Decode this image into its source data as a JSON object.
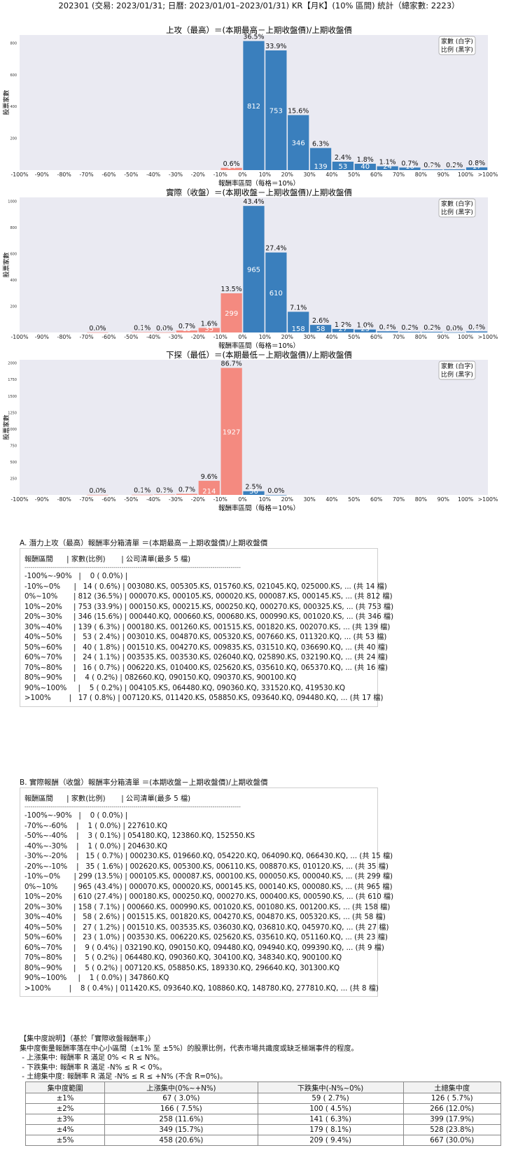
{
  "page_title": "202301 (交易: 2023/01/31; 日曆: 2023/01/01–2023/01/31) KR【月K】(10% 區間) 統計（總家數: 2223）",
  "chart_data": [
    {
      "type": "bar",
      "title": "上攻（最高）＝(本期最高－上期收盤價)/上期收盤價",
      "xlabel": "報酬率區間（每格＝10%）",
      "ylabel": "股票家數",
      "legend": [
        "家數 (白字)",
        "比例 (黑字)"
      ],
      "legend_position": "top-right",
      "x_ticks": [
        "-100%",
        "-90%",
        "-80%",
        "-70%",
        "-60%",
        "-50%",
        "-40%",
        "-30%",
        "-20%",
        "-10%",
        "0%",
        "10%",
        "20%",
        "30%",
        "40%",
        "50%",
        "60%",
        "70%",
        "80%",
        "90%",
        "100%",
        ">100%"
      ],
      "y_ticks": [
        200,
        400,
        600,
        800
      ],
      "ylim": [
        0,
        850
      ],
      "bins": [
        {
          "lo": -10,
          "count": 14,
          "pct": "0.6%",
          "side": "neg"
        },
        {
          "lo": 0,
          "count": 812,
          "pct": "36.5%",
          "side": "pos"
        },
        {
          "lo": 10,
          "count": 753,
          "pct": "33.9%",
          "side": "pos"
        },
        {
          "lo": 20,
          "count": 346,
          "pct": "15.6%",
          "side": "pos"
        },
        {
          "lo": 30,
          "count": 139,
          "pct": "6.3%",
          "side": "pos"
        },
        {
          "lo": 40,
          "count": 53,
          "pct": "2.4%",
          "side": "pos"
        },
        {
          "lo": 50,
          "count": 40,
          "pct": "1.8%",
          "side": "pos"
        },
        {
          "lo": 60,
          "count": 24,
          "pct": "1.1%",
          "side": "pos"
        },
        {
          "lo": 70,
          "count": 16,
          "pct": "0.7%",
          "side": "pos"
        },
        {
          "lo": 80,
          "count": 4,
          "pct": "0.2%",
          "side": "pos"
        },
        {
          "lo": 90,
          "count": 5,
          "pct": "0.2%",
          "side": "pos"
        },
        {
          "lo": 100,
          "count": 17,
          "pct": "0.8%",
          "side": "pos"
        }
      ]
    },
    {
      "type": "bar",
      "title": "實際（收盤）＝(本期收盤－上期收盤價)/上期收盤價",
      "xlabel": "報酬率區間（每格＝10%）",
      "ylabel": "股票家數",
      "legend": [
        "家數 (白字)",
        "比例 (黑字)"
      ],
      "legend_position": "top-right",
      "x_ticks": [
        "-100%",
        "-90%",
        "-80%",
        "-70%",
        "-60%",
        "-50%",
        "-40%",
        "-30%",
        "-20%",
        "-10%",
        "0%",
        "10%",
        "20%",
        "30%",
        "40%",
        "50%",
        "60%",
        "70%",
        "80%",
        "90%",
        "100%",
        ">100%"
      ],
      "y_ticks": [
        200,
        400,
        600,
        800,
        1000
      ],
      "ylim": [
        0,
        1030
      ],
      "bins": [
        {
          "lo": -70,
          "count": 1,
          "pct": "0.0%",
          "side": "neg"
        },
        {
          "lo": -50,
          "count": 3,
          "pct": "0.1%",
          "side": "neg"
        },
        {
          "lo": -40,
          "count": 1,
          "pct": "0.0%",
          "side": "neg"
        },
        {
          "lo": -30,
          "count": 15,
          "pct": "0.7%",
          "side": "neg"
        },
        {
          "lo": -20,
          "count": 35,
          "pct": "1.6%",
          "side": "neg"
        },
        {
          "lo": -10,
          "count": 299,
          "pct": "13.5%",
          "side": "neg"
        },
        {
          "lo": 0,
          "count": 965,
          "pct": "43.4%",
          "side": "pos"
        },
        {
          "lo": 10,
          "count": 610,
          "pct": "27.4%",
          "side": "pos"
        },
        {
          "lo": 20,
          "count": 158,
          "pct": "7.1%",
          "side": "pos"
        },
        {
          "lo": 30,
          "count": 58,
          "pct": "2.6%",
          "side": "pos"
        },
        {
          "lo": 40,
          "count": 27,
          "pct": "1.2%",
          "side": "pos"
        },
        {
          "lo": 50,
          "count": 23,
          "pct": "1.0%",
          "side": "pos"
        },
        {
          "lo": 60,
          "count": 9,
          "pct": "0.4%",
          "side": "pos"
        },
        {
          "lo": 70,
          "count": 5,
          "pct": "0.2%",
          "side": "pos"
        },
        {
          "lo": 80,
          "count": 5,
          "pct": "0.2%",
          "side": "pos"
        },
        {
          "lo": 90,
          "count": 1,
          "pct": "0.0%",
          "side": "pos"
        },
        {
          "lo": 100,
          "count": 8,
          "pct": "0.4%",
          "side": "pos"
        }
      ]
    },
    {
      "type": "bar",
      "title": "下探（最低）＝(本期最低－上期收盤價)/上期收盤價",
      "xlabel": "報酬率區間（每格＝10%）",
      "ylabel": "股票家數",
      "legend": [
        "家數 (白字)",
        "比例 (黑字)"
      ],
      "legend_position": "top-right",
      "x_ticks": [
        "-100%",
        "-90%",
        "-80%",
        "-70%",
        "-60%",
        "-50%",
        "-40%",
        "-30%",
        "-20%",
        "-10%",
        "0%",
        "10%",
        "20%",
        "30%",
        "40%",
        "50%",
        "60%",
        "70%",
        "80%",
        "90%",
        "100%",
        ">100%"
      ],
      "y_ticks": [
        250,
        500,
        750,
        1000,
        1250,
        1500,
        1750,
        2000
      ],
      "ylim": [
        0,
        2050
      ],
      "bins": [
        {
          "lo": -70,
          "count": 1,
          "pct": "0.0%",
          "side": "neg"
        },
        {
          "lo": -50,
          "count": 3,
          "pct": "0.1%",
          "side": "neg"
        },
        {
          "lo": -40,
          "count": 6,
          "pct": "0.3%",
          "side": "neg"
        },
        {
          "lo": -30,
          "count": 16,
          "pct": "0.7%",
          "side": "neg"
        },
        {
          "lo": -20,
          "count": 214,
          "pct": "9.6%",
          "side": "neg"
        },
        {
          "lo": -10,
          "count": 1927,
          "pct": "86.7%",
          "side": "neg"
        },
        {
          "lo": 0,
          "count": 56,
          "pct": "2.5%",
          "side": "pos"
        },
        {
          "lo": 10,
          "count": 0,
          "pct": "0.0%",
          "side": "pos"
        }
      ]
    }
  ],
  "section_a": {
    "title": "A. 潛力上攻（最高）報酬率分箱清單 ＝(本期最高－上期收盤價)/上期收盤價",
    "header": "報酬區間      | 家數(比例)       | 公司清單(最多 5 檔)",
    "dashes": "-----------------------------------------------------------------------------------------------------------",
    "lines": [
      "-100%~-90%   |    0 ( 0.0%) |",
      "-10%~0%      |   14 ( 0.6%) | 003080.KS, 005305.KS, 015760.KS, 021045.KQ, 025000.KS, ... (共 14 檔)",
      "0%~10%       | 812 (36.5%) | 000070.KS, 000105.KS, 000020.KS, 000087.KS, 000145.KS, ... (共 812 檔)",
      "10%~20%     | 753 (33.9%) | 000150.KS, 000215.KS, 000250.KQ, 000270.KS, 000325.KS, ... (共 753 檔)",
      "20%~30%     | 346 (15.6%) | 000440.KQ, 000660.KS, 000680.KS, 000990.KS, 001020.KS, ... (共 346 檔)",
      "30%~40%     | 139 ( 6.3%) | 000180.KS, 001260.KS, 001515.KS, 001820.KS, 002070.KS, ... (共 139 檔)",
      "40%~50%     |   53 ( 2.4%) | 003010.KS, 004870.KS, 005320.KS, 007660.KS, 011320.KQ, ... (共 53 檔)",
      "50%~60%     |   40 ( 1.8%) | 001510.KS, 004270.KS, 009835.KS, 031510.KQ, 036690.KQ, ... (共 40 檔)",
      "60%~70%     |   24 ( 1.1%) | 003535.KS, 003530.KS, 026040.KQ, 025890.KS, 032190.KQ, ... (共 24 檔)",
      "70%~80%     |   16 ( 0.7%) | 006220.KS, 010400.KS, 025620.KS, 035610.KQ, 065370.KQ, ... (共 16 檔)",
      "80%~90%     |    4 ( 0.2%) | 082660.KQ, 090150.KQ, 090370.KS, 900100.KQ",
      "90%~100%     |    5 ( 0.2%) | 004105.KS, 064480.KQ, 090360.KQ, 331520.KQ, 419530.KQ",
      ">100%        |   17 ( 0.8%) | 007120.KS, 011420.KS, 058850.KS, 093640.KQ, 094480.KQ, ... (共 17 檔)"
    ]
  },
  "section_b": {
    "title": "B. 實際報酬（收盤）報酬率分箱清單 ＝(本期收盤－上期收盤價)/上期收盤價",
    "header": "報酬區間      | 家數(比例)       | 公司清單(最多 5 檔)",
    "dashes": "-----------------------------------------------------------------------------------------------------------",
    "lines": [
      "-100%~-90%   |    0 ( 0.0%) |",
      "-70%~-60%    |    1 ( 0.0%) | 227610.KQ",
      "-50%~-40%    |    3 ( 0.1%) | 054180.KQ, 123860.KQ, 152550.KS",
      "-40%~-30%    |    1 ( 0.0%) | 204630.KQ",
      "-30%~-20%    |   15 ( 0.7%) | 000230.KS, 019660.KQ, 054220.KQ, 064090.KQ, 066430.KQ, ... (共 15 檔)",
      "-20%~-10%    |   35 ( 1.6%) | 002620.KS, 005300.KS, 006110.KS, 008870.KS, 010120.KS, ... (共 35 檔)",
      "-10%~0%      | 299 (13.5%) | 000105.KS, 000087.KS, 000100.KS, 000050.KS, 000040.KS, ... (共 299 檔)",
      "0%~10%       | 965 (43.4%) | 000070.KS, 000020.KS, 000145.KS, 000140.KS, 000080.KS, ... (共 965 檔)",
      "10%~20%     | 610 (27.4%) | 000180.KS, 000250.KQ, 000270.KS, 000400.KS, 000590.KS, ... (共 610 檔)",
      "20%~30%     | 158 ( 7.1%) | 000660.KS, 000990.KS, 001020.KS, 001080.KS, 001200.KS, ... (共 158 檔)",
      "30%~40%     |   58 ( 2.6%) | 001515.KS, 001820.KS, 004270.KS, 004870.KS, 005320.KS, ... (共 58 檔)",
      "40%~50%     |   27 ( 1.2%) | 001510.KS, 003535.KS, 036030.KQ, 036810.KQ, 045970.KQ, ... (共 27 檔)",
      "50%~60%     |   23 ( 1.0%) | 003530.KS, 006220.KS, 025620.KS, 035610.KQ, 051160.KQ, ... (共 23 檔)",
      "60%~70%     |    9 ( 0.4%) | 032190.KQ, 090150.KQ, 094480.KQ, 094940.KQ, 099390.KQ, ... (共 9 檔)",
      "70%~80%     |    5 ( 0.2%) | 064480.KQ, 090360.KQ, 304100.KQ, 348340.KQ, 900100.KQ",
      "80%~90%     |    5 ( 0.2%) | 007120.KS, 058850.KS, 189330.KQ, 296640.KQ, 301300.KQ",
      "90%~100%     |    1 ( 0.0%) | 347860.KQ",
      ">100%        |    8 ( 0.4%) | 011420.KS, 093640.KQ, 108860.KQ, 148780.KQ, 277810.KQ, ... (共 8 檔)"
    ]
  },
  "concentration": {
    "notes": [
      "【集中度說明】（基於「實際收盤報酬率」）",
      "集中度衡量報酬率落在中心小區間（±1% 至 ±5%）的股票比例，代表市場共識度或缺乏極端事件的程度。",
      " - 上漲集中: 報酬率 R 滿足 0% < R ≤ N%。",
      " - 下跌集中: 報酬率 R 滿足 -N% ≤ R < 0%。",
      " - 土總集中度: 報酬率 R 滿足 -N% ≤ R ≤ +N% (不含 R=0%)。"
    ],
    "columns": [
      "集中度範圍",
      "上漲集中(0%~+N%)",
      "下跌集中(-N%~0%)",
      "土總集中度"
    ],
    "rows": [
      [
        "±1%",
        "67 ( 3.0%)",
        "59 ( 2.7%)",
        "126 ( 5.7%)"
      ],
      [
        "±2%",
        "166 ( 7.5%)",
        "100 ( 4.5%)",
        "266 (12.0%)"
      ],
      [
        "±3%",
        "258 (11.6%)",
        "141 ( 6.3%)",
        "399 (17.9%)"
      ],
      [
        "±4%",
        "349 (15.7%)",
        "179 ( 8.1%)",
        "528 (23.8%)"
      ],
      [
        "±5%",
        "458 (20.6%)",
        "209 ( 9.4%)",
        "667 (30.0%)"
      ]
    ]
  },
  "colors": {
    "positive_bar": "#3a7fbd",
    "negative_bar": "#f48a80",
    "plot_bg": "#eaeaf2"
  }
}
